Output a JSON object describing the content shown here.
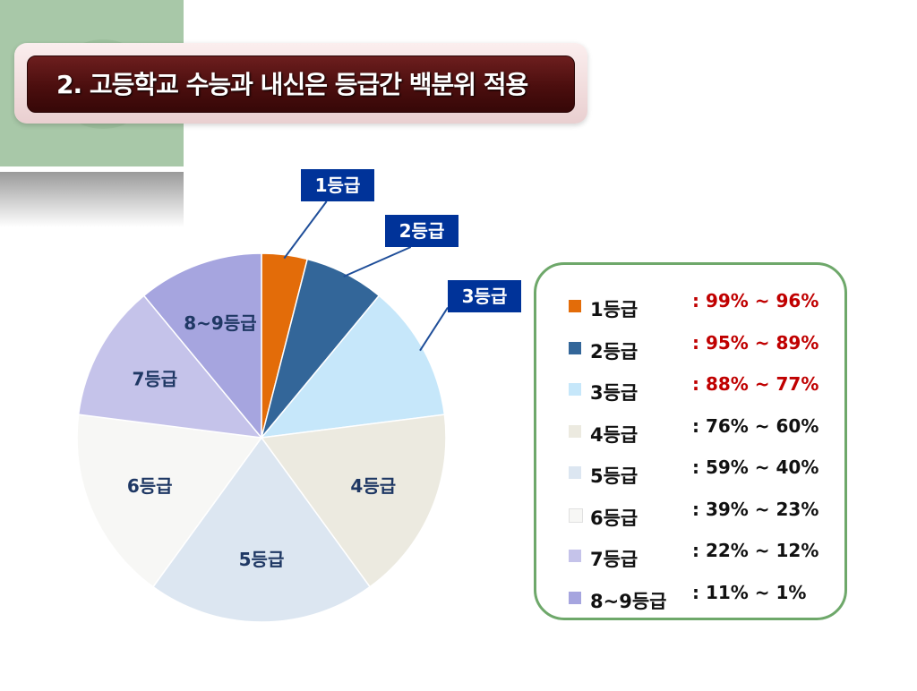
{
  "slide": {
    "title": "2.  고등학교 수능과 내신은  등급간  백분위 적용"
  },
  "chart_data": {
    "type": "pie",
    "slices": [
      {
        "label": "1등급",
        "range": ": 99% ~ 96%",
        "value": 4,
        "color": "#e36c09",
        "range_color": "#c00000"
      },
      {
        "label": "2등급",
        "range": ": 95% ~ 89%",
        "value": 7,
        "color": "#336699",
        "range_color": "#c00000"
      },
      {
        "label": "3등급",
        "range": ": 88% ~ 77%",
        "value": 12,
        "color": "#c6e7fa",
        "range_color": "#c00000"
      },
      {
        "label": "4등급",
        "range": ": 76% ~ 60%",
        "value": 17,
        "color": "#eceae0",
        "range_color": "#111111"
      },
      {
        "label": "5등급",
        "range": ": 59% ~ 40%",
        "value": 20,
        "color": "#dce6f1",
        "range_color": "#111111"
      },
      {
        "label": "6등급",
        "range": ": 39% ~ 23%",
        "value": 17,
        "color": "#f7f7f5",
        "range_color": "#111111"
      },
      {
        "label": "7등급",
        "range": ": 22% ~ 12%",
        "value": 12,
        "color": "#c5c3ea",
        "range_color": "#111111"
      },
      {
        "label": "8~9등급",
        "range": ": 11% ~ 1%",
        "value": 11,
        "color": "#a6a5df",
        "range_color": "#111111"
      }
    ]
  },
  "colors": {
    "label_text": "#1f3864",
    "callout_bg": "#003399",
    "callout_line": "#1f4e99"
  }
}
